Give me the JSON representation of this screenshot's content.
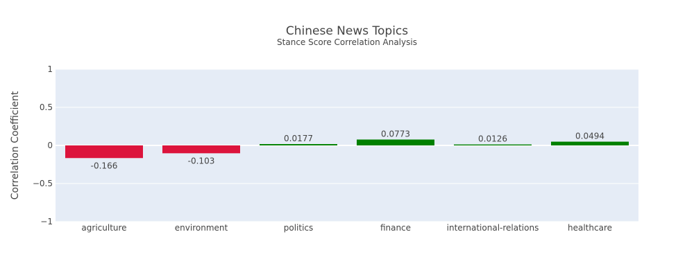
{
  "chart_data": {
    "type": "bar",
    "title": "Chinese News Topics",
    "subtitle": "Stance Score Correlation Analysis",
    "xlabel": "",
    "ylabel": "Correlation Coefficient",
    "ylim": [
      -1,
      1
    ],
    "yticks": [
      1,
      0.5,
      0,
      -0.5,
      -1
    ],
    "ytick_labels": [
      "1",
      "0.5",
      "0",
      "−0.5",
      "−1"
    ],
    "grid": true,
    "categories": [
      "agriculture",
      "environment",
      "politics",
      "finance",
      "international-relations",
      "healthcare"
    ],
    "values": [
      -0.166,
      -0.103,
      0.0177,
      0.0773,
      0.0126,
      0.0494
    ],
    "value_labels": [
      "-0.166",
      "-0.103",
      "0.0177",
      "0.0773",
      "0.0126",
      "0.0494"
    ],
    "colors": {
      "positive": "#008000",
      "negative": "#dc143c",
      "plot_bg": "#e5ecf6",
      "grid": "#ffffff"
    }
  }
}
